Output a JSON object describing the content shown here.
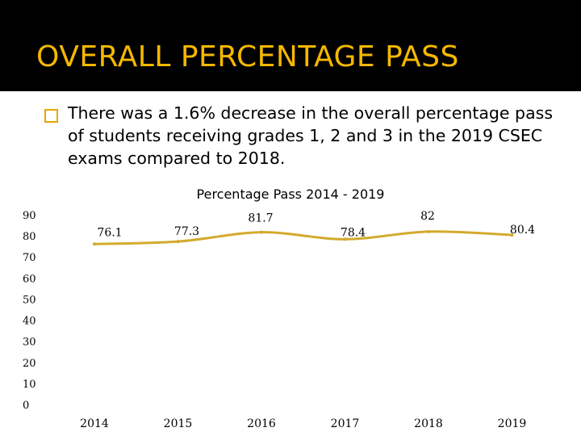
{
  "slide": {
    "title": "OVERALL PERCENTAGE PASS",
    "bullet": "There was a 1.6% decrease in the overall percentage pass of students receiving grades 1, 2 and 3 in the 2019 CSEC exams compared to 2018."
  },
  "colors": {
    "title": "#f5b800",
    "header_bg": "#000000",
    "bullet_box": "#e5a800",
    "series": "#d4aa2c"
  },
  "chart_data": {
    "type": "line",
    "title": "Percentage Pass 2014 - 2019",
    "categories": [
      "2014",
      "2015",
      "2016",
      "2017",
      "2018",
      "2019"
    ],
    "series": [
      {
        "name": "Percentage Pass",
        "values": [
          76.1,
          77.3,
          81.7,
          78.4,
          82,
          80.4
        ]
      }
    ],
    "data_labels": [
      "76.1",
      "77.3",
      "81.7",
      "78.4",
      "82",
      "80.4"
    ],
    "yticks": [
      0,
      10,
      20,
      30,
      40,
      50,
      60,
      70,
      80,
      90
    ],
    "ylim": [
      0,
      90
    ],
    "xlabel": "",
    "ylabel": "",
    "grid": false,
    "legend": "none"
  }
}
